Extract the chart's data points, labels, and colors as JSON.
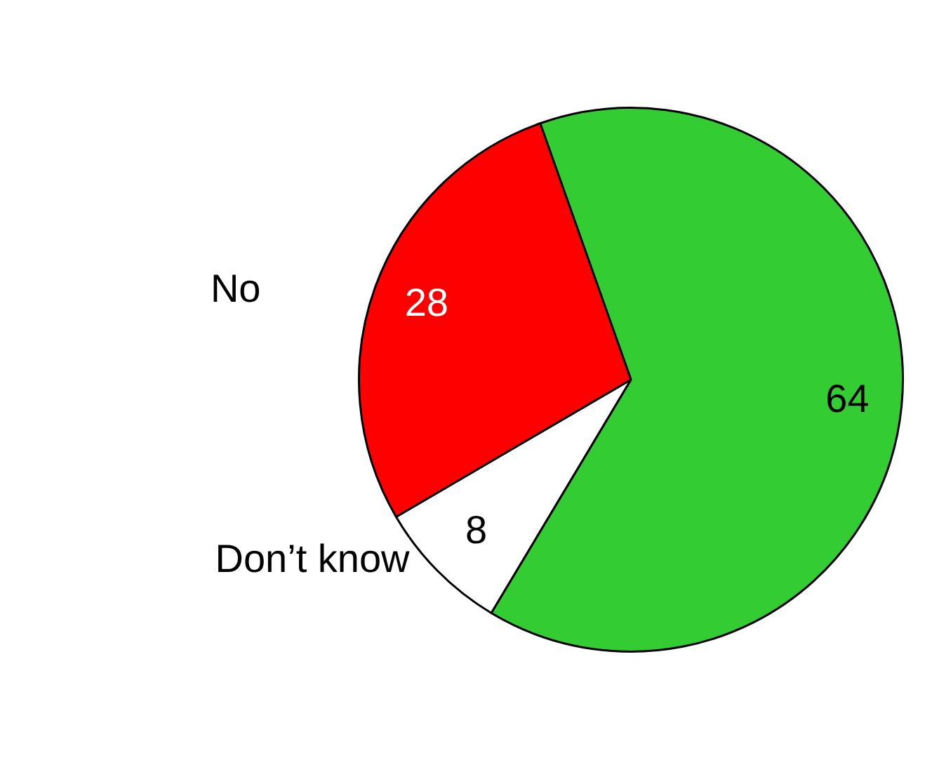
{
  "chart_data": {
    "type": "pie",
    "categories": [
      null,
      "Don’t know",
      "No"
    ],
    "values": [
      64,
      8,
      28
    ],
    "colors": [
      "#33cc33",
      "#ffffff",
      "#ff0000"
    ],
    "data_labels": true,
    "legend": false
  }
}
